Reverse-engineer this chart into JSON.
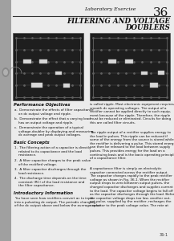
{
  "title_label": "Laboratory Exercise",
  "title_number": "36",
  "subtitle_line1": "FILTERING AND VOLTAGE",
  "subtitle_line2": "DOUBLERS",
  "perf_obj_title": "Performance Objectives",
  "perf_obj_items": [
    "a.  Demonstrate the effects of filter capacitance\n    on dc output voltage and ripple.",
    "b.  Demonstrate the effect that a varying load\n    has on output voltage and ripple.",
    "c.  Demonstrate the operation of a typical\n    voltage-doubler by displaying and measuring\n    dc average and peak output voltages."
  ],
  "basic_concepts_title": "Basic Concepts",
  "basic_concepts_items": [
    "1.  The filtering action of a capacitor is directly\n    related to its capacitance and the load\n    resistance.",
    "2.  A filter capacitor charges to the peak value\n    of the rectified voltage.",
    "3.  A filter capacitor discharges through the\n    load resistance.",
    "4.  The discharge time depends on the time\n    constant (RC) of the load resistance and\n    the filter capacitance."
  ],
  "intro_title": "Introductory Information",
  "intro_text": "You have seen how rectifiers convert ac to input\ninto a pulsating dc output. The periodic changing\nof the dc output above and below the average value",
  "right_col_text1": "is called ripple. Most electronic equipment requires\nsmooth dc operating voltages. The output of a\nrectifier cannot be applied directly to such equip-\nment because of the ripple. Therefore, the ripple\nmust be reduced or eliminated. Circuits for doing\nthis are called filter circuits.",
  "right_col_text2": "The ripple output of a rectifier supplies energy to\nthe load in pulses. This ripple can be reduced if\nsome of the energy from the source is stored while\nthe rectifier is delivering a pulse. This stored energy\ncan then be released to the load between supply\npulses. This provides energy for the load on a\ncontinuing basis and is the basic operating principle\nof a capacitance filter.",
  "right_col_text3": "A capacitance filter is simply an electrolytic\ncapacitor connected across the rectifier output.\nThe capacitor charges rapidly to the peak rectifier\nvoltage as shown in Fig. 36-1. When the rectifier\noutput drops to zero between output pulses, the\ncharged capacitor discharges and supplies current\nto the load. The capacitor voltage begins to fall off\nas the capacitor discharges through the load. Before\nthe capacitor voltage drops too low, another out-\nput pulse, supplied by the rectifier, recharges the\ncapacitor to the peak voltage value. The rate at",
  "page_number": "36-1"
}
